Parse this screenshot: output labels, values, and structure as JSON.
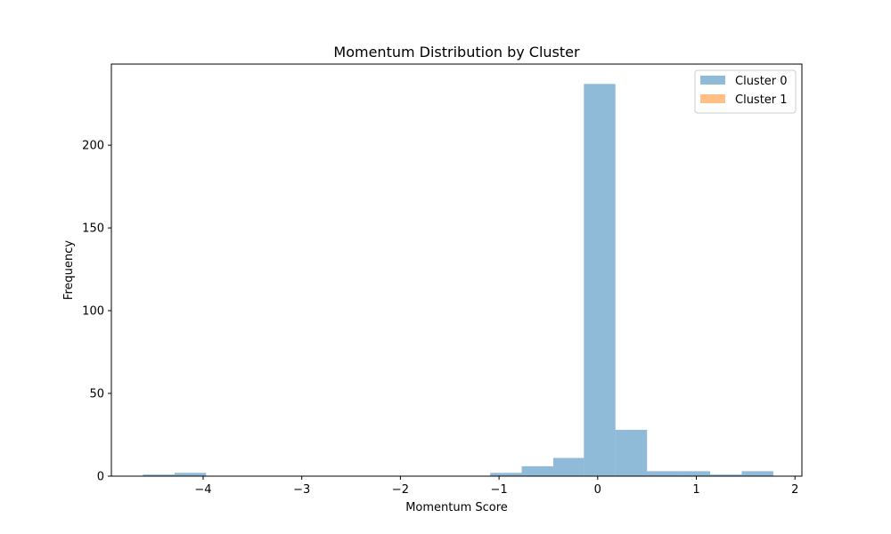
{
  "chart_data": {
    "type": "bar",
    "title": "Momentum Distribution by Cluster",
    "xlabel": "Momentum Score",
    "ylabel": "Frequency",
    "xlim": [
      -4.93,
      2.07
    ],
    "ylim": [
      0,
      249
    ],
    "xticks": [
      -4,
      -3,
      -2,
      -1,
      0,
      1,
      2
    ],
    "yticks": [
      0,
      50,
      100,
      150,
      200
    ],
    "legend_position": "top-right",
    "grid": false,
    "series": [
      {
        "name": "Cluster 0",
        "color": "#1f77b4",
        "opacity": 0.5,
        "bins": [
          {
            "x0": -4.61,
            "x1": -4.29,
            "count": 1
          },
          {
            "x0": -4.29,
            "x1": -3.97,
            "count": 2
          },
          {
            "x0": -1.09,
            "x1": -0.77,
            "count": 2
          },
          {
            "x0": -0.77,
            "x1": -0.45,
            "count": 6
          },
          {
            "x0": -0.45,
            "x1": -0.14,
            "count": 11
          },
          {
            "x0": -0.14,
            "x1": 0.18,
            "count": 237
          },
          {
            "x0": 0.18,
            "x1": 0.5,
            "count": 28
          },
          {
            "x0": 0.5,
            "x1": 0.82,
            "count": 3
          },
          {
            "x0": 0.82,
            "x1": 1.14,
            "count": 3
          },
          {
            "x0": 1.14,
            "x1": 1.46,
            "count": 1
          },
          {
            "x0": 1.46,
            "x1": 1.78,
            "count": 3
          }
        ]
      },
      {
        "name": "Cluster 1",
        "color": "#ff7f0e",
        "opacity": 0.5,
        "bins": []
      }
    ]
  }
}
